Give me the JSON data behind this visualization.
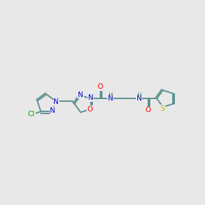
{
  "background_color": "#e8e8e8",
  "bond_color": "#5a9090",
  "atom_colors": {
    "N": "#0000cc",
    "O": "#ff0000",
    "S": "#bbbb00",
    "Cl": "#00aa00",
    "C": "#4a7a7a",
    "H": "#4a7a7a"
  },
  "figsize": [
    3.0,
    3.0
  ],
  "dpi": 100
}
